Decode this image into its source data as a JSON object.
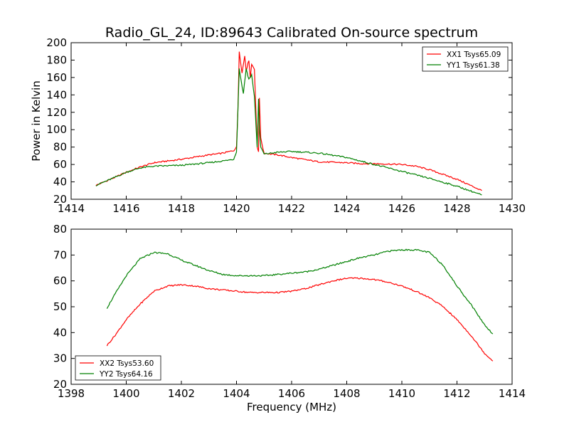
{
  "figure": {
    "title": "Radio_GL_24, ID:89643 Calibrated On-source spectrum",
    "xlabel": "Frequency (MHz)",
    "ylabel": "Power in Kelvin",
    "colors": {
      "red": "#ff0000",
      "green": "#008000"
    }
  },
  "chart_data": [
    {
      "type": "line",
      "xlim": [
        1414,
        1430
      ],
      "ylim": [
        20,
        200
      ],
      "xticks": [
        1414,
        1416,
        1418,
        1420,
        1422,
        1424,
        1426,
        1428,
        1430
      ],
      "yticks": [
        20,
        40,
        60,
        80,
        100,
        120,
        140,
        160,
        180,
        200
      ],
      "xlabel": "",
      "ylabel": "Power in Kelvin",
      "legend": "top-right",
      "series": [
        {
          "name": "XX1 Tsys65.09",
          "color": "#ff0000",
          "x": [
            1414.9,
            1415.5,
            1416,
            1416.5,
            1417,
            1418,
            1419,
            1419.5,
            1419.9,
            1420.0,
            1420.05,
            1420.1,
            1420.2,
            1420.3,
            1420.35,
            1420.45,
            1420.5,
            1420.55,
            1420.65,
            1420.75,
            1420.8,
            1420.83,
            1420.88,
            1421.0,
            1421.5,
            1422,
            1423,
            1424,
            1424.5,
            1425,
            1426,
            1426.5,
            1427,
            1428,
            1428.9
          ],
          "y": [
            36,
            44,
            51,
            57,
            62,
            66,
            71,
            73,
            76,
            80,
            120,
            190,
            165,
            185,
            168,
            180,
            160,
            175,
            170,
            80,
            75,
            137,
            90,
            73,
            71,
            68,
            63,
            62,
            61,
            61,
            60,
            58,
            54,
            43,
            30
          ]
        },
        {
          "name": "YY1 Tsys61.38",
          "color": "#008000",
          "x": [
            1414.9,
            1415.5,
            1416,
            1416.5,
            1417,
            1418,
            1419,
            1419.5,
            1419.9,
            1420.0,
            1420.05,
            1420.1,
            1420.2,
            1420.25,
            1420.35,
            1420.45,
            1420.55,
            1420.65,
            1420.75,
            1420.8,
            1420.83,
            1420.88,
            1421.0,
            1421.5,
            1422,
            1423,
            1424,
            1425,
            1426,
            1427,
            1428,
            1428.9
          ],
          "y": [
            36,
            44,
            51,
            56,
            58,
            59,
            62,
            64,
            66,
            75,
            120,
            170,
            150,
            142,
            170,
            158,
            163,
            138,
            80,
            135,
            100,
            80,
            72,
            74,
            75,
            73,
            68,
            60,
            52,
            44,
            35,
            25
          ]
        }
      ]
    },
    {
      "type": "line",
      "xlim": [
        1398,
        1414
      ],
      "ylim": [
        20,
        80
      ],
      "xticks": [
        1398,
        1400,
        1402,
        1404,
        1406,
        1408,
        1410,
        1412,
        1414
      ],
      "yticks": [
        20,
        30,
        40,
        50,
        60,
        70,
        80
      ],
      "xlabel": "Frequency (MHz)",
      "ylabel": "",
      "legend": "bottom-left",
      "series": [
        {
          "name": "XX2 Tsys53.60",
          "color": "#ff0000",
          "x": [
            1399.3,
            1399.6,
            1400,
            1400.5,
            1401,
            1401.5,
            1402,
            1402.5,
            1403,
            1403.5,
            1404,
            1404.5,
            1405,
            1405.5,
            1406,
            1406.5,
            1407,
            1407.5,
            1408,
            1408.5,
            1409,
            1409.5,
            1410,
            1410.5,
            1411,
            1411.5,
            1412,
            1412.5,
            1413,
            1413.3
          ],
          "y": [
            35,
            39,
            45,
            51,
            56,
            58,
            58.5,
            58,
            57,
            56.5,
            56,
            55.5,
            55.5,
            55.5,
            56,
            57,
            58.5,
            60,
            61,
            61,
            60.5,
            59.5,
            58,
            56,
            53.5,
            50,
            45,
            39,
            32,
            29
          ]
        },
        {
          "name": "YY2 Tsys64.16",
          "color": "#008000",
          "x": [
            1399.3,
            1399.6,
            1400,
            1400.5,
            1401,
            1401.5,
            1402,
            1402.5,
            1403,
            1403.5,
            1404,
            1404.5,
            1405,
            1405.5,
            1406,
            1406.5,
            1407,
            1407.5,
            1408,
            1408.5,
            1409,
            1409.5,
            1410,
            1410.5,
            1411,
            1411.5,
            1412,
            1412.5,
            1413,
            1413.3
          ],
          "y": [
            49.5,
            55,
            62,
            68.5,
            71,
            70.5,
            68,
            66,
            64,
            62.5,
            62,
            62,
            62,
            62.5,
            63,
            63.5,
            64.5,
            66,
            67.5,
            69,
            70,
            71.5,
            72,
            72,
            71,
            66,
            58,
            51,
            43,
            39.5
          ]
        }
      ]
    }
  ]
}
